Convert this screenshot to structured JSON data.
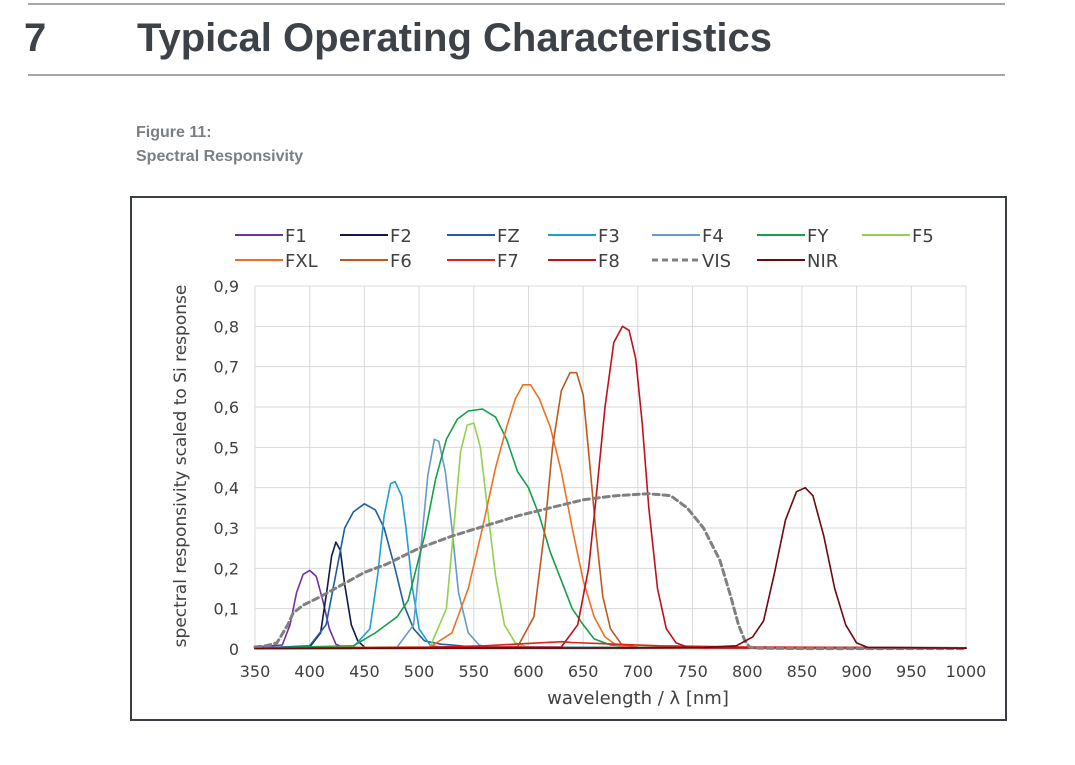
{
  "section": {
    "number": "7",
    "title": "Typical Operating Characteristics"
  },
  "figure": {
    "label": "Figure 11:",
    "caption": "Spectral Responsivity"
  },
  "colors": {
    "rule": "#a6a6a6",
    "heading": "#3d4248",
    "caption": "#7a7f84",
    "grid": "#d9d9d9"
  },
  "chart_data": {
    "type": "line",
    "xlabel": "wavelength / λ [nm]",
    "ylabel": "spectral responsivity scaled to Si response",
    "xlim": [
      350,
      1000
    ],
    "ylim": [
      0,
      0.9
    ],
    "x_ticks": [
      350,
      400,
      450,
      500,
      550,
      600,
      650,
      700,
      750,
      800,
      850,
      900,
      950,
      1000
    ],
    "y_ticks": [
      0,
      0.1,
      0.2,
      0.3,
      0.4,
      0.5,
      0.6,
      0.7,
      0.8,
      0.9
    ],
    "y_tick_labels": [
      "0",
      "0,1",
      "0,2",
      "0,3",
      "0,4",
      "0,5",
      "0,6",
      "0,7",
      "0,8",
      "0,9"
    ],
    "grid": true,
    "legend_position": "top",
    "series": [
      {
        "name": "F1",
        "color": "#7030a0",
        "dashed": false,
        "x": [
          350,
          375,
          382,
          388,
          394,
          400,
          406,
          412,
          418,
          424,
          430,
          440,
          460,
          1000
        ],
        "y": [
          0.005,
          0.01,
          0.06,
          0.14,
          0.185,
          0.195,
          0.18,
          0.12,
          0.05,
          0.012,
          0.005,
          0.003,
          0.002,
          0.002
        ]
      },
      {
        "name": "F2",
        "color": "#0d1a4a",
        "dashed": false,
        "x": [
          350,
          400,
          410,
          416,
          420,
          424,
          428,
          432,
          438,
          444,
          450,
          460,
          1000
        ],
        "y": [
          0.002,
          0.005,
          0.04,
          0.15,
          0.23,
          0.265,
          0.245,
          0.16,
          0.06,
          0.02,
          0.005,
          0.002,
          0.002
        ]
      },
      {
        "name": "FZ",
        "color": "#1f5f99",
        "dashed": false,
        "x": [
          350,
          400,
          415,
          425,
          432,
          440,
          450,
          460,
          468,
          478,
          486,
          495,
          505,
          520,
          530,
          550,
          1000
        ],
        "y": [
          0.002,
          0.008,
          0.06,
          0.2,
          0.3,
          0.34,
          0.36,
          0.345,
          0.3,
          0.2,
          0.11,
          0.05,
          0.02,
          0.012,
          0.01,
          0.005,
          0.003
        ]
      },
      {
        "name": "F3",
        "color": "#1ca0d0",
        "dashed": false,
        "x": [
          350,
          440,
          455,
          462,
          468,
          474,
          478,
          484,
          488,
          494,
          500,
          510,
          520,
          1000
        ],
        "y": [
          0.002,
          0.005,
          0.05,
          0.18,
          0.33,
          0.41,
          0.415,
          0.38,
          0.3,
          0.15,
          0.05,
          0.01,
          0.004,
          0.002
        ]
      },
      {
        "name": "F4",
        "color": "#6699cc",
        "dashed": false,
        "x": [
          350,
          480,
          495,
          502,
          508,
          514,
          518,
          524,
          530,
          536,
          545,
          555,
          565,
          1000
        ],
        "y": [
          0.002,
          0.005,
          0.06,
          0.26,
          0.43,
          0.52,
          0.515,
          0.44,
          0.3,
          0.14,
          0.04,
          0.01,
          0.003,
          0.002
        ]
      },
      {
        "name": "FY",
        "color": "#13a048",
        "dashed": false,
        "x": [
          350,
          440,
          460,
          480,
          490,
          505,
          515,
          525,
          535,
          545,
          558,
          570,
          580,
          590,
          600,
          610,
          620,
          630,
          640,
          650,
          660,
          675,
          700,
          1000
        ],
        "y": [
          0.002,
          0.008,
          0.04,
          0.08,
          0.12,
          0.28,
          0.42,
          0.52,
          0.57,
          0.59,
          0.595,
          0.575,
          0.52,
          0.44,
          0.4,
          0.33,
          0.24,
          0.17,
          0.1,
          0.06,
          0.025,
          0.01,
          0.005,
          0.003
        ]
      },
      {
        "name": "F5",
        "color": "#92d050",
        "dashed": false,
        "x": [
          350,
          510,
          525,
          532,
          538,
          544,
          550,
          556,
          562,
          570,
          578,
          588,
          600,
          1000
        ],
        "y": [
          0.002,
          0.005,
          0.1,
          0.31,
          0.49,
          0.555,
          0.56,
          0.5,
          0.36,
          0.18,
          0.06,
          0.015,
          0.004,
          0.002
        ]
      },
      {
        "name": "FXL",
        "color": "#f07020",
        "dashed": false,
        "x": [
          350,
          510,
          530,
          545,
          558,
          570,
          580,
          588,
          595,
          602,
          610,
          620,
          630,
          640,
          650,
          660,
          670,
          680,
          690,
          700,
          1000
        ],
        "y": [
          0.002,
          0.005,
          0.04,
          0.15,
          0.3,
          0.45,
          0.55,
          0.62,
          0.655,
          0.655,
          0.62,
          0.55,
          0.44,
          0.3,
          0.17,
          0.08,
          0.03,
          0.01,
          0.005,
          0.003,
          0.002
        ]
      },
      {
        "name": "F6",
        "color": "#c0581e",
        "dashed": false,
        "x": [
          350,
          590,
          605,
          615,
          622,
          630,
          638,
          644,
          650,
          656,
          662,
          668,
          675,
          685,
          700,
          1000
        ],
        "y": [
          0.002,
          0.005,
          0.08,
          0.3,
          0.5,
          0.64,
          0.685,
          0.685,
          0.63,
          0.46,
          0.28,
          0.13,
          0.05,
          0.012,
          0.004,
          0.002
        ]
      },
      {
        "name": "F7",
        "color": "#e02020",
        "dashed": false,
        "x": [
          350,
          450,
          500,
          560,
          600,
          630,
          640,
          680,
          720,
          800,
          1000
        ],
        "y": [
          0.001,
          0.002,
          0.004,
          0.008,
          0.014,
          0.018,
          0.016,
          0.012,
          0.008,
          0.005,
          0.003
        ]
      },
      {
        "name": "F8",
        "color": "#c0101c",
        "dashed": false,
        "x": [
          350,
          630,
          645,
          655,
          662,
          670,
          678,
          686,
          692,
          698,
          704,
          710,
          718,
          726,
          735,
          745,
          760,
          1000
        ],
        "y": [
          0.002,
          0.005,
          0.06,
          0.2,
          0.38,
          0.6,
          0.76,
          0.8,
          0.79,
          0.72,
          0.56,
          0.35,
          0.15,
          0.05,
          0.015,
          0.005,
          0.003,
          0.002
        ]
      },
      {
        "name": "VIS",
        "color": "#808080",
        "dashed": true,
        "x": [
          350,
          360,
          370,
          380,
          385,
          395,
          410,
          430,
          450,
          470,
          500,
          530,
          560,
          590,
          620,
          650,
          680,
          710,
          730,
          745,
          760,
          775,
          785,
          792,
          798,
          802,
          810,
          850,
          1000
        ],
        "y": [
          0.005,
          0.008,
          0.015,
          0.06,
          0.09,
          0.11,
          0.13,
          0.16,
          0.19,
          0.21,
          0.25,
          0.28,
          0.305,
          0.33,
          0.35,
          0.37,
          0.38,
          0.385,
          0.38,
          0.35,
          0.3,
          0.22,
          0.13,
          0.06,
          0.02,
          0.005,
          0.002,
          0.001,
          0.001
        ]
      },
      {
        "name": "NIR",
        "color": "#6b0a10",
        "dashed": false,
        "x": [
          350,
          700,
          760,
          790,
          805,
          815,
          825,
          835,
          845,
          853,
          860,
          870,
          880,
          890,
          900,
          910,
          1000
        ],
        "y": [
          0.001,
          0.003,
          0.004,
          0.008,
          0.03,
          0.07,
          0.19,
          0.32,
          0.39,
          0.4,
          0.38,
          0.28,
          0.15,
          0.06,
          0.015,
          0.004,
          0.002
        ]
      }
    ]
  }
}
